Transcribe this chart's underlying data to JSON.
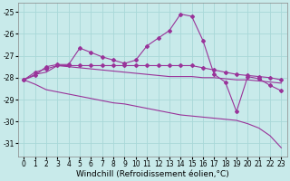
{
  "x": [
    0,
    1,
    2,
    3,
    4,
    5,
    6,
    7,
    8,
    9,
    10,
    11,
    12,
    13,
    14,
    15,
    16,
    17,
    18,
    19,
    20,
    21,
    22,
    23
  ],
  "line1": [
    -28.1,
    -27.9,
    -27.5,
    -27.4,
    -27.4,
    -26.65,
    -26.85,
    -27.05,
    -27.2,
    -27.35,
    -27.2,
    -26.55,
    -26.2,
    -25.85,
    -25.1,
    -25.2,
    -26.3,
    -27.85,
    -28.2,
    -29.55,
    -27.95,
    -28.05,
    -28.35,
    -28.6
  ],
  "line2": [
    -28.1,
    -27.75,
    -27.6,
    -27.45,
    -27.45,
    -27.45,
    -27.45,
    -27.45,
    -27.45,
    -27.45,
    -27.45,
    -27.45,
    -27.45,
    -27.45,
    -27.45,
    -27.45,
    -27.55,
    -27.65,
    -27.75,
    -27.85,
    -27.9,
    -27.95,
    -28.0,
    -28.1
  ],
  "line3": [
    -28.1,
    -27.85,
    -27.75,
    -27.45,
    -27.5,
    -27.55,
    -27.6,
    -27.65,
    -27.7,
    -27.75,
    -27.8,
    -27.85,
    -27.9,
    -27.95,
    -27.95,
    -27.95,
    -28.0,
    -28.0,
    -28.05,
    -28.1,
    -28.1,
    -28.15,
    -28.2,
    -28.25
  ],
  "line4": [
    -28.1,
    -28.3,
    -28.55,
    -28.65,
    -28.75,
    -28.85,
    -28.95,
    -29.05,
    -29.15,
    -29.2,
    -29.3,
    -29.4,
    -29.5,
    -29.6,
    -29.7,
    -29.75,
    -29.8,
    -29.85,
    -29.9,
    -29.95,
    -30.1,
    -30.3,
    -30.65,
    -31.2
  ],
  "color": "#993399",
  "background": "#c8eaea",
  "grid_color": "#a8d8d8",
  "ylim": [
    -31.6,
    -24.6
  ],
  "yticks": [
    -31,
    -30,
    -29,
    -28,
    -27,
    -26,
    -25
  ],
  "xlim": [
    -0.5,
    23.5
  ],
  "xlabel": "Windchill (Refroidissement éolien,°C)",
  "xlabel_fontsize": 6.5,
  "tick_fontsize": 5.5,
  "marker": "D",
  "markersize": 2.0
}
